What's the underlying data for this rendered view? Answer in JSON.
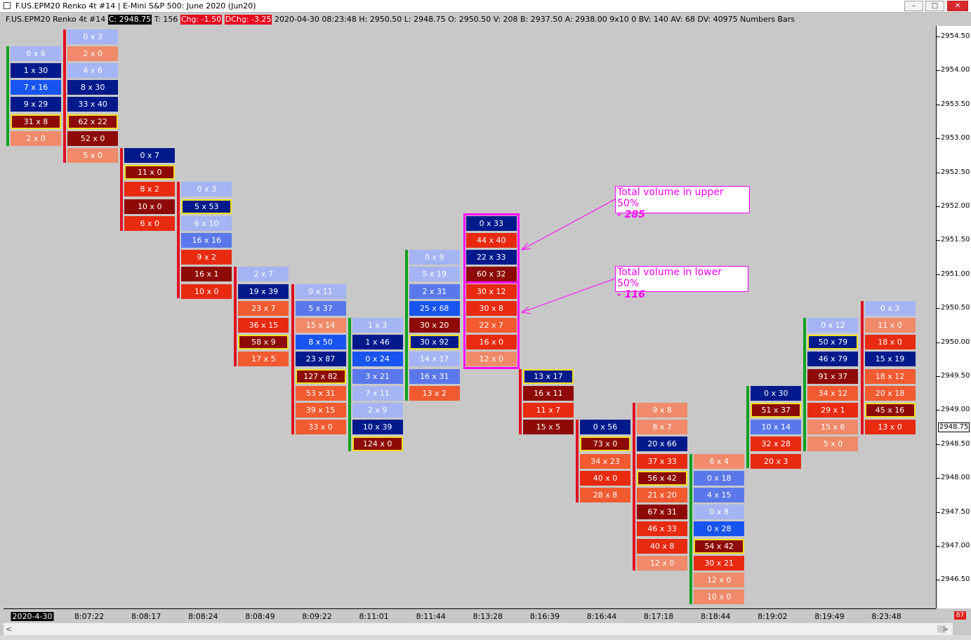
{
  "window": {
    "title": "F.US.EPM20  Renko 4t  #14 | E-Mini S&P 500: June 2020 (Jun20)",
    "btn_min": "–",
    "btn_max": "□",
    "btn_close": "✕"
  },
  "infobar": {
    "symbol": "F.US.EPM20  Renko 4t  #14",
    "close": "C: 2948.75",
    "ticks": "T: 156",
    "chg": "Chg: -1.50",
    "dchg": "DChg: -3.25",
    "details": "2020-04-30 08:23:48 H: 2950.50 L: 2948.75 O: 2950.50 V: 208 B: 2937.50 A: 2938.00 9x10 0 BV: 140 AV: 68 DV: 40975 Numbers Bars"
  },
  "colors": {
    "light_blue": "#a4b4f4",
    "blue": "#1855f0",
    "mid_blue": "#5a78ec",
    "dark_blue": "#001a8c",
    "light_red": "#f08a6a",
    "red": "#e82a10",
    "mid_red": "#f25a30",
    "dark_red": "#8e0a06",
    "up_bar": "#10a020",
    "down_bar": "#e01020",
    "highlight": "#f0e020",
    "annotation": "#ff00ff"
  },
  "price_axis": {
    "labels": [
      "2954.50",
      "2954.00",
      "2953.50",
      "2953.00",
      "2952.50",
      "2952.00",
      "2951.50",
      "2951.00",
      "2950.50",
      "2950.00",
      "2949.50",
      "2949.00",
      "2948.50",
      "2948.00",
      "2947.50",
      "2947.00",
      "2946.50"
    ],
    "current_price": "2948.75"
  },
  "time_axis": {
    "labels": [
      "2020-4-30",
      "8:07:22",
      "8:08:17",
      "8:08:24",
      "8:08:49",
      "8:09:22",
      "8:11:01",
      "8:11:44",
      "8:13:28",
      "8:16:39",
      "8:16:44",
      "8:17:18",
      "8:18:44",
      "8:19:02",
      "8:19:49",
      "8:23:48"
    ]
  },
  "corner_badge": "87",
  "scrollbar": {
    "left_arrow": "<",
    "right_arrow": ">"
  },
  "annotations": [
    {
      "line1": "Total volume in upper 50%",
      "line2": "- 285"
    },
    {
      "line1": "Total volume in lower 50%",
      "line2": "- 116"
    }
  ],
  "chart_data": {
    "type": "table",
    "title": "F.US.EPM20 Renko 4t #14 — Numbers Bars",
    "bars": [
      {
        "time": "2020-4-30",
        "direction": "up",
        "top_price": 2954.25,
        "cells": [
          [
            "0 x 6",
            "light_blue",
            0
          ],
          [
            "1 x 30",
            "dark_blue",
            0
          ],
          [
            "7 x 16",
            "blue",
            0
          ],
          [
            "9 x 29",
            "dark_blue",
            0
          ],
          [
            "31 x 8",
            "dark_red",
            1
          ],
          [
            "2 x 0",
            "light_red",
            0
          ]
        ]
      },
      {
        "time": "8:07:22",
        "direction": "down",
        "top_price": 2954.5,
        "cells": [
          [
            "0 x 3",
            "light_blue",
            0
          ],
          [
            "2 x 0",
            "light_red",
            0
          ],
          [
            "4 x 6",
            "light_blue",
            0
          ],
          [
            "8 x 30",
            "dark_blue",
            0
          ],
          [
            "33 x 40",
            "dark_blue",
            0
          ],
          [
            "62 x 22",
            "dark_red",
            1
          ],
          [
            "52 x 0",
            "dark_red",
            0
          ],
          [
            "5 x 0",
            "light_red",
            0
          ]
        ]
      },
      {
        "time": "8:08:17",
        "direction": "down",
        "top_price": 2952.75,
        "cells": [
          [
            "0 x 7",
            "dark_blue",
            0
          ],
          [
            "11 x 0",
            "dark_red",
            1
          ],
          [
            "8 x 2",
            "red",
            0
          ],
          [
            "10 x 0",
            "dark_red",
            0
          ],
          [
            "6 x 0",
            "red",
            0
          ]
        ]
      },
      {
        "time": "8:08:24",
        "direction": "down",
        "top_price": 2952.25,
        "cells": [
          [
            "0 x 3",
            "light_blue",
            0
          ],
          [
            "5 x 53",
            "dark_blue",
            1
          ],
          [
            "6 x 10",
            "light_blue",
            0
          ],
          [
            "16 x 16",
            "mid_blue",
            0
          ],
          [
            "9 x 2",
            "red",
            0
          ],
          [
            "16 x 1",
            "dark_red",
            0
          ],
          [
            "10 x 0",
            "red",
            0
          ]
        ]
      },
      {
        "time": "8:08:49",
        "direction": "down",
        "top_price": 2951.0,
        "cells": [
          [
            "2 x 7",
            "light_blue",
            0
          ],
          [
            "19 x 39",
            "dark_blue",
            0
          ],
          [
            "23 x 7",
            "mid_red",
            0
          ],
          [
            "36 x 15",
            "red",
            0
          ],
          [
            "58 x 9",
            "dark_red",
            1
          ],
          [
            "17 x 5",
            "mid_red",
            0
          ]
        ]
      },
      {
        "time": "8:09:22",
        "direction": "down",
        "top_price": 2950.75,
        "cells": [
          [
            "0 x 11",
            "light_blue",
            0
          ],
          [
            "5 x 37",
            "mid_blue",
            0
          ],
          [
            "15 x 14",
            "light_red",
            0
          ],
          [
            "8 x 50",
            "blue",
            0
          ],
          [
            "23 x 87",
            "dark_blue",
            0
          ],
          [
            "127 x 82",
            "dark_red",
            1
          ],
          [
            "53 x 31",
            "mid_red",
            0
          ],
          [
            "39 x 15",
            "mid_red",
            0
          ],
          [
            "33 x 0",
            "mid_red",
            0
          ]
        ]
      },
      {
        "time": "8:11:01",
        "direction": "up",
        "top_price": 2950.25,
        "cells": [
          [
            "1 x 3",
            "light_blue",
            0
          ],
          [
            "1 x 46",
            "dark_blue",
            0
          ],
          [
            "0 x 24",
            "blue",
            0
          ],
          [
            "3 x 21",
            "mid_blue",
            0
          ],
          [
            "7 x 11",
            "light_blue",
            0
          ],
          [
            "2 x 9",
            "light_blue",
            0
          ],
          [
            "10 x 39",
            "dark_blue",
            0
          ],
          [
            "124 x 0",
            "dark_red",
            1
          ]
        ]
      },
      {
        "time": "8:11:44",
        "direction": "up",
        "top_price": 2951.25,
        "cells": [
          [
            "0 x 9",
            "light_blue",
            0
          ],
          [
            "5 x 19",
            "light_blue",
            0
          ],
          [
            "2 x 31",
            "mid_blue",
            0
          ],
          [
            "25 x 68",
            "blue",
            0
          ],
          [
            "30 x 20",
            "dark_red",
            0
          ],
          [
            "30 x 92",
            "dark_blue",
            1
          ],
          [
            "14 x 17",
            "light_blue",
            0
          ],
          [
            "16 x 31",
            "mid_blue",
            0
          ],
          [
            "13 x 2",
            "mid_red",
            0
          ]
        ]
      },
      {
        "time": "8:13:28",
        "direction": "none",
        "top_price": 2951.75,
        "cells": [
          [
            "0 x 33",
            "dark_blue",
            0
          ],
          [
            "44 x 40",
            "red",
            0
          ],
          [
            "22 x 33",
            "dark_blue",
            0
          ],
          [
            "60 x 32",
            "dark_red",
            0
          ],
          [
            "30 x 12",
            "red",
            0
          ],
          [
            "30 x 8",
            "red",
            0
          ],
          [
            "22 x 7",
            "mid_red",
            0
          ],
          [
            "16 x 0",
            "red",
            0
          ],
          [
            "12 x 0",
            "light_red",
            0
          ]
        ]
      },
      {
        "time": "8:16:39",
        "direction": "down",
        "top_price": 2949.5,
        "cells": [
          [
            "13 x 17",
            "dark_blue",
            1
          ],
          [
            "16 x 11",
            "dark_red",
            0
          ],
          [
            "11 x 7",
            "red",
            0
          ],
          [
            "15 x 5",
            "dark_red",
            0
          ]
        ]
      },
      {
        "time": "8:16:44",
        "direction": "down",
        "top_price": 2948.75,
        "cells": [
          [
            "0 x 56",
            "dark_blue",
            0
          ],
          [
            "73 x 0",
            "dark_red",
            1
          ],
          [
            "34 x 23",
            "mid_red",
            0
          ],
          [
            "40 x 0",
            "red",
            0
          ],
          [
            "28 x 8",
            "mid_red",
            0
          ]
        ]
      },
      {
        "time": "8:17:18",
        "direction": "down",
        "top_price": 2949.0,
        "cells": [
          [
            "9 x 8",
            "light_red",
            0
          ],
          [
            "8 x 7",
            "light_red",
            0
          ],
          [
            "20 x 66",
            "dark_blue",
            0
          ],
          [
            "37 x 33",
            "red",
            0
          ],
          [
            "56 x 42",
            "dark_red",
            1
          ],
          [
            "21 x 20",
            "mid_red",
            0
          ],
          [
            "67 x 31",
            "dark_red",
            0
          ],
          [
            "46 x 33",
            "red",
            0
          ],
          [
            "40 x 8",
            "red",
            0
          ],
          [
            "12 x 0",
            "light_red",
            0
          ]
        ]
      },
      {
        "time": "8:18:44",
        "direction": "up",
        "top_price": 2948.25,
        "cells": [
          [
            "6 x 4",
            "light_red",
            0
          ],
          [
            "0 x 18",
            "mid_blue",
            0
          ],
          [
            "4 x 15",
            "mid_blue",
            0
          ],
          [
            "0 x 8",
            "light_blue",
            0
          ],
          [
            "0 x 28",
            "blue",
            0
          ],
          [
            "54 x 42",
            "dark_red",
            1
          ],
          [
            "30 x 21",
            "red",
            0
          ],
          [
            "12 x 0",
            "light_red",
            0
          ],
          [
            "10 x 0",
            "light_red",
            0
          ]
        ]
      },
      {
        "time": "8:19:02",
        "direction": "up",
        "top_price": 2949.25,
        "cells": [
          [
            "0 x 30",
            "dark_blue",
            0
          ],
          [
            "51 x 37",
            "dark_red",
            1
          ],
          [
            "10 x 14",
            "mid_blue",
            0
          ],
          [
            "32 x 28",
            "red",
            0
          ],
          [
            "20 x 3",
            "red",
            0
          ]
        ]
      },
      {
        "time": "8:19:49",
        "direction": "up",
        "top_price": 2950.25,
        "cells": [
          [
            "0 x 12",
            "light_blue",
            0
          ],
          [
            "50 x 79",
            "dark_blue",
            1
          ],
          [
            "46 x 79",
            "dark_blue",
            0
          ],
          [
            "91 x 37",
            "dark_red",
            0
          ],
          [
            "34 x 12",
            "mid_red",
            0
          ],
          [
            "29 x 1",
            "red",
            0
          ],
          [
            "15 x 6",
            "light_red",
            0
          ],
          [
            "5 x 0",
            "light_red",
            0
          ]
        ]
      },
      {
        "time": "8:23:48",
        "direction": "down",
        "top_price": 2950.5,
        "cells": [
          [
            "0 x 3",
            "light_blue",
            0
          ],
          [
            "11 x 0",
            "light_red",
            0
          ],
          [
            "18 x 0",
            "red",
            0
          ],
          [
            "15 x 19",
            "dark_blue",
            0
          ],
          [
            "18 x 12",
            "mid_red",
            0
          ],
          [
            "20 x 18",
            "mid_red",
            0
          ],
          [
            "45 x 16",
            "dark_red",
            1
          ],
          [
            "13 x 0",
            "red",
            0
          ]
        ]
      }
    ],
    "y_range": [
      2946.25,
      2954.75
    ],
    "tick_size": 0.25,
    "highlighted_bar": {
      "time": "8:13:28",
      "upper_volume": 285,
      "lower_volume": 116
    }
  }
}
